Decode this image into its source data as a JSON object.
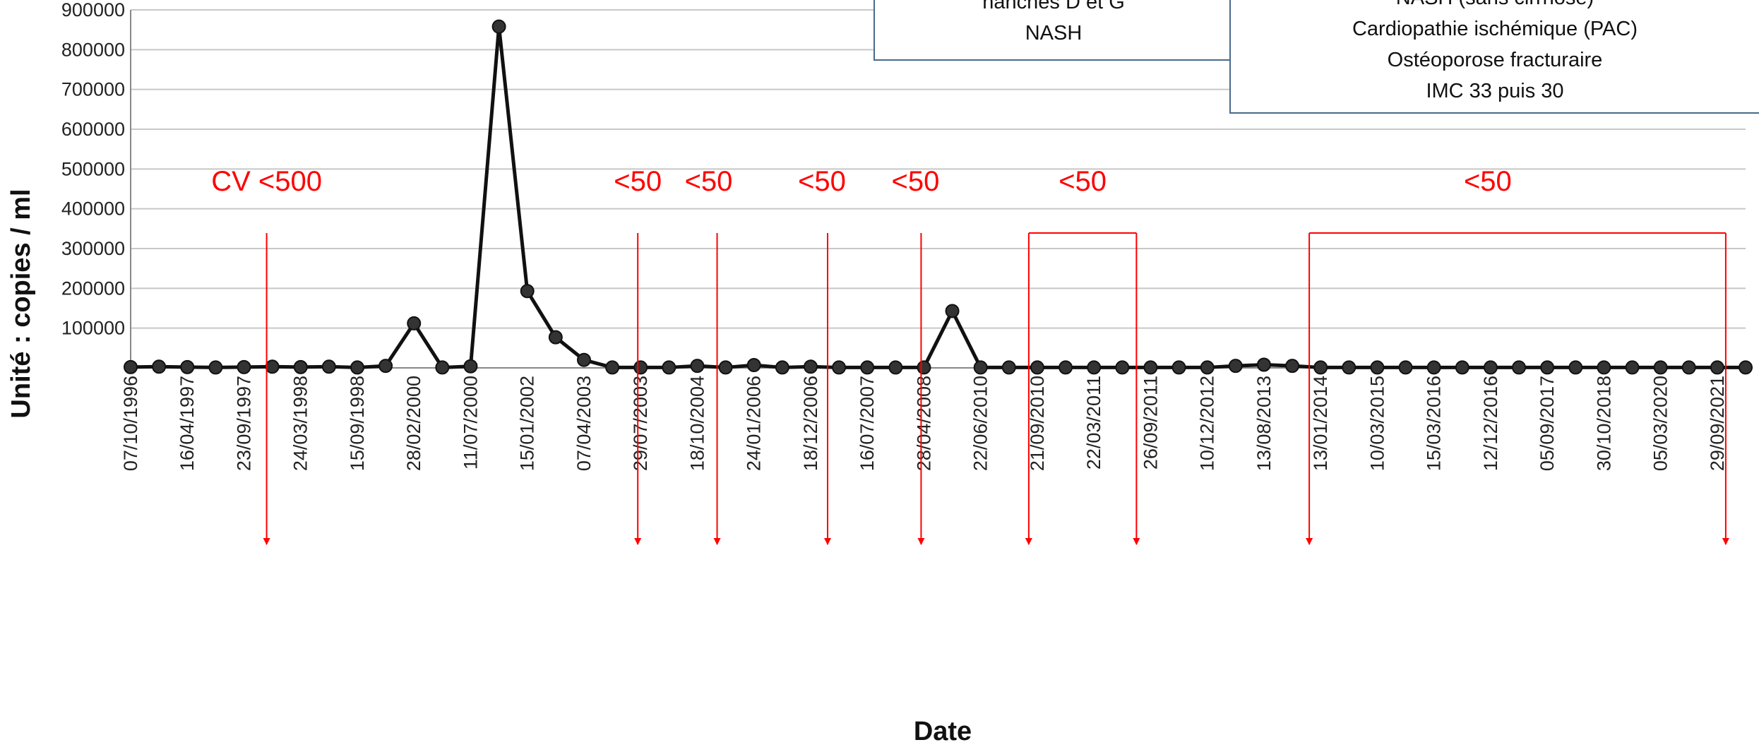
{
  "chart_data": {
    "type": "line",
    "xlabel": "Date",
    "ylabel": "Unité : copies / ml",
    "ylim": [
      0,
      900000
    ],
    "y_ticks": [
      "100000",
      "200000",
      "300000",
      "400000",
      "500000",
      "600000",
      "700000",
      "800000",
      "900000"
    ],
    "x_tick_labels": [
      "07/10/1996",
      "16/04/1997",
      "23/09/1997",
      "24/03/1998",
      "15/09/1998",
      "28/02/2000",
      "11/07/2000",
      "15/01/2002",
      "07/04/2003",
      "29/07/2003",
      "18/10/2004",
      "24/01/2006",
      "18/12/2006",
      "16/07/2007",
      "28/04/2008",
      "22/06/2010",
      "21/09/2010",
      "22/03/2011",
      "26/09/2011",
      "10/12/2012",
      "13/08/2013",
      "13/01/2014",
      "10/03/2015",
      "15/03/2016",
      "12/12/2016",
      "05/09/2017",
      "30/10/2018",
      "05/03/2020",
      "29/09/2021"
    ],
    "x_tick_positions": [
      0,
      2,
      4,
      6,
      8,
      10,
      12,
      14,
      16,
      18,
      20,
      22,
      24,
      26,
      28,
      30,
      32,
      34,
      36,
      38,
      40,
      42,
      44,
      46,
      48,
      50,
      52,
      54,
      56
    ],
    "values": [
      2000,
      3000,
      2000,
      1000,
      2000,
      3000,
      2000,
      3000,
      1000,
      5000,
      112000,
      1000,
      4000,
      858000,
      193000,
      77000,
      20000,
      1000,
      1000,
      1000,
      5000,
      1000,
      7000,
      1000,
      3000,
      1000,
      1000,
      1000,
      1000,
      143000,
      1000,
      1000,
      1000,
      1000,
      1000,
      1000,
      1000,
      1000,
      1000,
      5000,
      8000,
      5000,
      1000,
      1000,
      1000,
      1000,
      1000,
      1000,
      1000,
      1000,
      1000,
      1000,
      1000,
      1000,
      1000,
      1000,
      1000,
      1000
    ],
    "line_color": "#111111",
    "annotation_color": "#ff0000",
    "annotations": [
      {
        "text": "CV <500",
        "label_x": 4.8,
        "arrows": [
          4.8
        ]
      },
      {
        "text": "<50",
        "label_x": 17.9,
        "arrows": [
          17.9
        ]
      },
      {
        "text": "<50",
        "label_x": 20.4,
        "arrows": [
          20.7
        ]
      },
      {
        "text": "<50",
        "label_x": 24.4,
        "arrows": [
          24.6
        ]
      },
      {
        "text": "<50",
        "label_x": 27.7,
        "arrows": [
          27.9
        ]
      },
      {
        "text": "<50",
        "label_x": 33.6,
        "arrows": [
          31.7,
          35.5
        ],
        "bracket": true
      },
      {
        "text": "<50",
        "label_x": 47.9,
        "arrows": [
          41.6,
          56.3
        ],
        "bracket": true
      }
    ],
    "text_boxes": [
      {
        "lines": [
          "hanches D et G",
          "NASH"
        ]
      },
      {
        "lines": [
          "NASH (sans cirrhose)",
          "Cardiopathie ischémique (PAC)",
          "Ostéoporose fracturaire",
          "IMC 33 puis 30"
        ]
      }
    ]
  }
}
